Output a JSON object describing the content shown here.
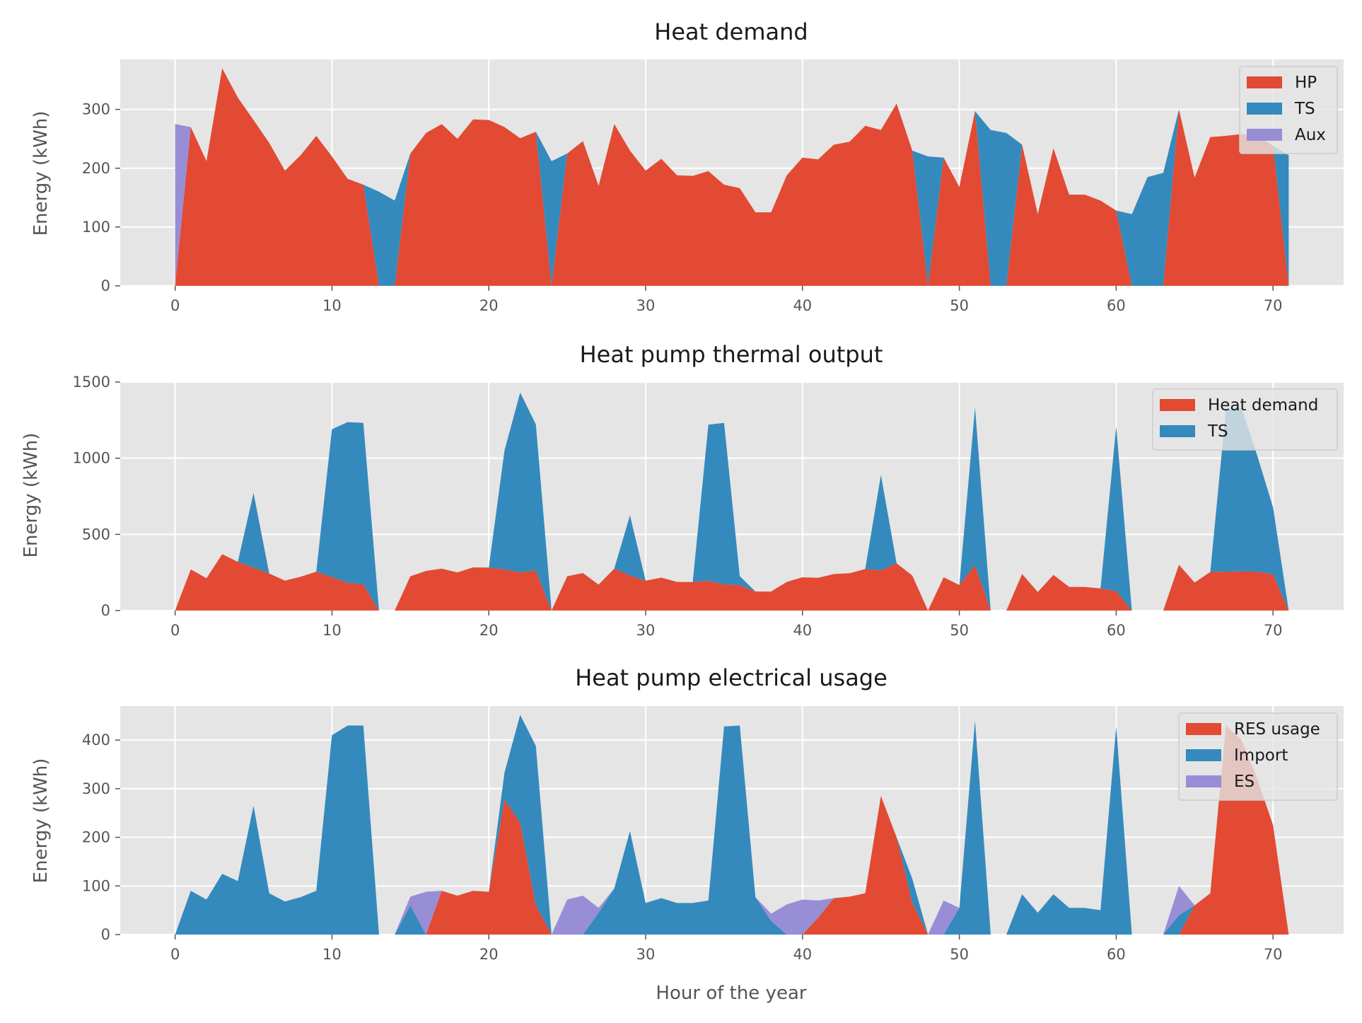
{
  "colors": {
    "red": "#E24A33",
    "blue": "#348ABD",
    "purple": "#988ED5",
    "background": "#E5E5E5",
    "grid": "#FFFFFF"
  },
  "chart_data": [
    {
      "type": "area",
      "stacked": true,
      "title": "Heat demand",
      "xlabel": "",
      "ylabel": "Energy (kWh)",
      "xlim": [
        -3.5,
        74.5
      ],
      "ylim": [
        0,
        385
      ],
      "xticks": [
        0,
        10,
        20,
        30,
        40,
        50,
        60,
        70
      ],
      "yticks": [
        0,
        100,
        200,
        300
      ],
      "grid": true,
      "legend": "top-right",
      "x_start": 0,
      "series": [
        {
          "name": "HP",
          "color": "red",
          "values": [
            0,
            270,
            212,
            370,
            320,
            282,
            243,
            196,
            222,
            255,
            220,
            182,
            172,
            0,
            0,
            225,
            260,
            275,
            250,
            283,
            282,
            270,
            251,
            262,
            0,
            225,
            246,
            170,
            275,
            230,
            196,
            216,
            188,
            187,
            195,
            172,
            166,
            125,
            125,
            188,
            218,
            215,
            240,
            245,
            272,
            265,
            310,
            230,
            0,
            218,
            168,
            297,
            0,
            0,
            240,
            122,
            234,
            155,
            155,
            145,
            128,
            0,
            0,
            0,
            300,
            184,
            253,
            255,
            258,
            255,
            238,
            0
          ]
        },
        {
          "name": "TS",
          "color": "blue",
          "values": [
            0,
            0,
            0,
            0,
            0,
            0,
            0,
            0,
            0,
            0,
            0,
            0,
            0,
            160,
            145,
            0,
            0,
            0,
            0,
            0,
            0,
            0,
            0,
            0,
            212,
            0,
            0,
            0,
            0,
            0,
            0,
            0,
            0,
            0,
            0,
            0,
            0,
            0,
            0,
            0,
            0,
            0,
            0,
            0,
            0,
            0,
            0,
            0,
            220,
            0,
            0,
            0,
            265,
            260,
            0,
            0,
            0,
            0,
            0,
            0,
            0,
            122,
            185,
            192,
            0,
            0,
            0,
            0,
            0,
            0,
            0,
            222
          ]
        },
        {
          "name": "Aux",
          "color": "purple",
          "values": [
            275,
            0,
            0,
            0,
            0,
            0,
            0,
            0,
            0,
            0,
            0,
            0,
            0,
            0,
            0,
            0,
            0,
            0,
            0,
            0,
            0,
            0,
            0,
            0,
            0,
            0,
            0,
            0,
            0,
            0,
            0,
            0,
            0,
            0,
            0,
            0,
            0,
            0,
            0,
            0,
            0,
            0,
            0,
            0,
            0,
            0,
            0,
            0,
            0,
            0,
            0,
            0,
            0,
            0,
            0,
            0,
            0,
            0,
            0,
            0,
            0,
            0,
            0,
            0,
            0,
            0,
            0,
            0,
            0,
            0,
            0,
            0
          ]
        }
      ]
    },
    {
      "type": "area",
      "stacked": true,
      "title": "Heat pump thermal output",
      "xlabel": "",
      "ylabel": "Energy (kWh)",
      "xlim": [
        -3.5,
        74.5
      ],
      "ylim": [
        0,
        1500
      ],
      "xticks": [
        0,
        10,
        20,
        30,
        40,
        50,
        60,
        70
      ],
      "yticks": [
        0,
        500,
        1000,
        1500
      ],
      "grid": true,
      "legend": "top-right",
      "x_start": 0,
      "series": [
        {
          "name": "Heat demand",
          "color": "red",
          "values": [
            0,
            270,
            212,
            370,
            320,
            282,
            243,
            196,
            222,
            255,
            220,
            182,
            172,
            0,
            0,
            225,
            260,
            275,
            250,
            283,
            282,
            270,
            251,
            262,
            0,
            225,
            246,
            170,
            275,
            230,
            196,
            216,
            188,
            187,
            195,
            172,
            166,
            125,
            125,
            188,
            218,
            215,
            240,
            245,
            272,
            265,
            310,
            230,
            0,
            218,
            168,
            297,
            0,
            0,
            240,
            122,
            234,
            155,
            155,
            145,
            128,
            0,
            0,
            0,
            300,
            184,
            253,
            255,
            258,
            255,
            238,
            0
          ]
        },
        {
          "name": "TS",
          "color": "blue",
          "values": [
            0,
            0,
            0,
            0,
            0,
            490,
            0,
            0,
            0,
            0,
            970,
            1055,
            1060,
            0,
            0,
            0,
            0,
            0,
            0,
            0,
            0,
            780,
            1180,
            960,
            0,
            0,
            0,
            0,
            0,
            395,
            0,
            0,
            0,
            0,
            1025,
            1060,
            60,
            0,
            0,
            0,
            0,
            0,
            0,
            0,
            0,
            625,
            0,
            0,
            0,
            0,
            0,
            1035,
            0,
            0,
            0,
            0,
            0,
            0,
            0,
            0,
            1080,
            0,
            0,
            0,
            0,
            0,
            0,
            1070,
            1070,
            760,
            440,
            0
          ]
        }
      ]
    },
    {
      "type": "area",
      "stacked": true,
      "title": "Heat pump electrical usage",
      "xlabel": "Hour of the year",
      "ylabel": "Energy (kWh)",
      "xlim": [
        -3.5,
        74.5
      ],
      "ylim": [
        0,
        470
      ],
      "xticks": [
        0,
        10,
        20,
        30,
        40,
        50,
        60,
        70
      ],
      "yticks": [
        0,
        100,
        200,
        300,
        400
      ],
      "grid": true,
      "legend": "top-right",
      "x_start": 0,
      "series": [
        {
          "name": "RES usage",
          "color": "red",
          "values": [
            0,
            0,
            0,
            0,
            0,
            0,
            0,
            0,
            0,
            0,
            0,
            0,
            0,
            0,
            0,
            0,
            0,
            90,
            80,
            90,
            88,
            278,
            230,
            60,
            0,
            0,
            0,
            0,
            0,
            0,
            0,
            0,
            0,
            0,
            0,
            0,
            0,
            0,
            0,
            0,
            0,
            35,
            75,
            78,
            85,
            285,
            200,
            65,
            0,
            0,
            0,
            0,
            0,
            0,
            0,
            0,
            0,
            0,
            0,
            0,
            0,
            0,
            0,
            0,
            0,
            60,
            85,
            430,
            400,
            320,
            225,
            0
          ]
        },
        {
          "name": "Import",
          "color": "blue",
          "values": [
            0,
            90,
            72,
            125,
            110,
            265,
            85,
            68,
            77,
            90,
            410,
            430,
            430,
            0,
            0,
            60,
            0,
            0,
            0,
            0,
            0,
            55,
            222,
            328,
            0,
            0,
            0,
            45,
            95,
            213,
            65,
            75,
            65,
            65,
            70,
            428,
            430,
            77,
            28,
            0,
            0,
            0,
            0,
            0,
            0,
            0,
            0,
            50,
            0,
            0,
            55,
            440,
            0,
            0,
            83,
            45,
            83,
            55,
            55,
            50,
            428,
            0,
            0,
            0,
            40,
            0,
            0,
            0,
            0,
            0,
            0,
            0
          ]
        },
        {
          "name": "ES",
          "color": "purple",
          "values": [
            0,
            0,
            0,
            0,
            0,
            0,
            0,
            0,
            0,
            0,
            0,
            0,
            0,
            0,
            0,
            18,
            88,
            0,
            0,
            0,
            0,
            0,
            0,
            0,
            0,
            72,
            80,
            10,
            0,
            0,
            0,
            0,
            0,
            0,
            0,
            0,
            0,
            0,
            15,
            62,
            72,
            35,
            0,
            0,
            0,
            0,
            0,
            0,
            0,
            70,
            0,
            0,
            0,
            0,
            0,
            0,
            0,
            0,
            0,
            0,
            0,
            0,
            0,
            0,
            60,
            0,
            0,
            0,
            0,
            0,
            0,
            0
          ]
        }
      ]
    }
  ]
}
